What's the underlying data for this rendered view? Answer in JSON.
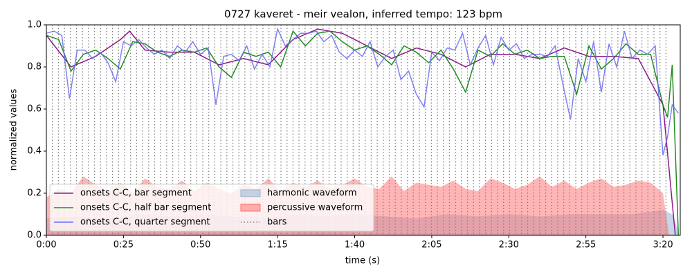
{
  "chart_data": {
    "type": "line",
    "title": "0727 kaveret - meir vealon, inferred tempo: 123 bpm",
    "xlabel": "time (s)",
    "ylabel": "normalized values",
    "xlim": [
      0,
      205.6
    ],
    "ylim": [
      0,
      1
    ],
    "xticks": [
      {
        "value": 0,
        "label": "0:00"
      },
      {
        "value": 25,
        "label": "0:25"
      },
      {
        "value": 50,
        "label": "0:50"
      },
      {
        "value": 75,
        "label": "1:15"
      },
      {
        "value": 100,
        "label": "1:40"
      },
      {
        "value": 125,
        "label": "2:05"
      },
      {
        "value": 150,
        "label": "2:30"
      },
      {
        "value": 175,
        "label": "2:55"
      },
      {
        "value": 200,
        "label": "3:20"
      }
    ],
    "yticks": [
      {
        "value": 0,
        "label": "0.0"
      },
      {
        "value": 0.2,
        "label": "0.2"
      },
      {
        "value": 0.4,
        "label": "0.4"
      },
      {
        "value": 0.6,
        "label": "0.6"
      },
      {
        "value": 0.8,
        "label": "0.8"
      },
      {
        "value": 1,
        "label": "1.0"
      }
    ],
    "legend": "lower left",
    "series": [
      {
        "name": "onsets C-C, bar segment",
        "kind": "line",
        "color": "#8b1a8b",
        "x": [
          0,
          8,
          16,
          24,
          27,
          32,
          40,
          48,
          56,
          64,
          72,
          80,
          88,
          96,
          104,
          112,
          120,
          128,
          136,
          144,
          152,
          160,
          168,
          176,
          184,
          192,
          200,
          204
        ],
        "values": [
          0.95,
          0.8,
          0.85,
          0.93,
          0.97,
          0.88,
          0.87,
          0.87,
          0.81,
          0.84,
          0.81,
          0.93,
          0.98,
          0.96,
          0.9,
          0.84,
          0.89,
          0.86,
          0.8,
          0.86,
          0.86,
          0.84,
          0.89,
          0.85,
          0.85,
          0.84,
          0.62,
          0.0
        ]
      },
      {
        "name": "onsets C-C, half bar segment",
        "kind": "line",
        "color": "#228b22",
        "x": [
          0,
          4,
          8,
          12,
          16,
          20,
          24,
          28,
          32,
          36,
          40,
          44,
          48,
          52,
          56,
          60,
          64,
          68,
          72,
          76,
          80,
          84,
          88,
          92,
          96,
          100,
          104,
          108,
          112,
          116,
          120,
          124,
          128,
          132,
          136,
          140,
          144,
          148,
          152,
          156,
          160,
          164,
          168,
          172,
          176,
          180,
          184,
          188,
          192,
          196,
          200,
          201.5,
          203,
          205
        ],
        "values": [
          0.95,
          0.93,
          0.78,
          0.86,
          0.88,
          0.84,
          0.79,
          0.92,
          0.91,
          0.87,
          0.85,
          0.88,
          0.87,
          0.89,
          0.8,
          0.75,
          0.87,
          0.85,
          0.87,
          0.8,
          0.97,
          0.9,
          0.96,
          0.97,
          0.92,
          0.88,
          0.9,
          0.86,
          0.81,
          0.9,
          0.87,
          0.82,
          0.88,
          0.79,
          0.68,
          0.88,
          0.85,
          0.91,
          0.86,
          0.88,
          0.84,
          0.85,
          0.85,
          0.67,
          0.9,
          0.79,
          0.84,
          0.91,
          0.86,
          0.86,
          0.62,
          0.56,
          0.81,
          0.0
        ]
      },
      {
        "name": "onsets C-C, quarter segment",
        "kind": "line",
        "color": "#6b6bf0",
        "x": [
          0,
          2.5,
          5,
          7.5,
          10,
          12.5,
          15,
          17.5,
          20,
          22.5,
          25,
          27.5,
          30,
          32.5,
          35,
          37.5,
          40,
          42.5,
          45,
          47.5,
          50,
          52.5,
          55,
          57.5,
          60,
          62.5,
          65,
          67.5,
          70,
          72.5,
          75,
          77.5,
          80,
          82.5,
          85,
          87.5,
          90,
          92.5,
          95,
          97.5,
          100,
          102.5,
          105,
          107.5,
          110,
          112.5,
          115,
          117.5,
          120,
          122.5,
          125,
          127.5,
          130,
          132.5,
          135,
          137.5,
          140,
          142.5,
          145,
          147.5,
          150,
          152.5,
          155,
          157.5,
          160,
          162.5,
          165,
          167.5,
          170,
          172.5,
          175,
          177.5,
          180,
          182.5,
          185,
          187.5,
          190,
          192.5,
          195,
          197.5,
          200,
          201.5,
          203,
          205
        ],
        "values": [
          0.96,
          0.97,
          0.95,
          0.65,
          0.88,
          0.88,
          0.84,
          0.87,
          0.82,
          0.73,
          0.92,
          0.9,
          0.93,
          0.89,
          0.86,
          0.88,
          0.84,
          0.9,
          0.87,
          0.92,
          0.86,
          0.89,
          0.62,
          0.85,
          0.86,
          0.83,
          0.9,
          0.79,
          0.86,
          0.8,
          0.98,
          0.9,
          0.93,
          0.96,
          0.96,
          0.97,
          0.92,
          0.95,
          0.87,
          0.84,
          0.88,
          0.85,
          0.92,
          0.8,
          0.85,
          0.88,
          0.74,
          0.78,
          0.67,
          0.61,
          0.87,
          0.83,
          0.89,
          0.88,
          0.96,
          0.81,
          0.89,
          0.95,
          0.81,
          0.94,
          0.88,
          0.91,
          0.84,
          0.86,
          0.86,
          0.85,
          0.9,
          0.72,
          0.55,
          0.84,
          0.73,
          0.92,
          0.68,
          0.91,
          0.8,
          0.97,
          0.84,
          0.88,
          0.86,
          0.9,
          0.38,
          0.47,
          0.62,
          0.58
        ]
      },
      {
        "name": "harmonic waveform",
        "kind": "area",
        "color": "#8fb0d0",
        "x": [
          0,
          10,
          20,
          30,
          40,
          50,
          60,
          70,
          80,
          90,
          100,
          110,
          120,
          130,
          140,
          150,
          160,
          170,
          180,
          190,
          200,
          203,
          205
        ],
        "values": [
          0.08,
          0.09,
          0.08,
          0.1,
          0.09,
          0.1,
          0.09,
          0.08,
          0.1,
          0.09,
          0.1,
          0.09,
          0.08,
          0.1,
          0.09,
          0.1,
          0.09,
          0.1,
          0.1,
          0.1,
          0.12,
          0.1,
          0.02
        ]
      },
      {
        "name": "percussive waveform",
        "kind": "area",
        "color": "#ff6b6b",
        "x": [
          0,
          4,
          8,
          12,
          16,
          20,
          24,
          28,
          32,
          36,
          40,
          44,
          48,
          52,
          56,
          60,
          64,
          68,
          72,
          76,
          80,
          84,
          88,
          92,
          96,
          100,
          104,
          108,
          112,
          116,
          120,
          124,
          128,
          132,
          136,
          140,
          144,
          148,
          152,
          156,
          160,
          164,
          168,
          172,
          176,
          180,
          184,
          188,
          192,
          196,
          200,
          202
        ],
        "values": [
          0.18,
          0.22,
          0.2,
          0.28,
          0.24,
          0.21,
          0.25,
          0.2,
          0.27,
          0.23,
          0.22,
          0.26,
          0.21,
          0.25,
          0.22,
          0.2,
          0.24,
          0.22,
          0.27,
          0.21,
          0.25,
          0.23,
          0.26,
          0.22,
          0.24,
          0.27,
          0.23,
          0.22,
          0.28,
          0.21,
          0.25,
          0.24,
          0.23,
          0.26,
          0.22,
          0.21,
          0.27,
          0.25,
          0.22,
          0.24,
          0.28,
          0.23,
          0.26,
          0.22,
          0.25,
          0.27,
          0.23,
          0.24,
          0.26,
          0.25,
          0.2,
          0.0
        ]
      },
      {
        "name": "bars",
        "kind": "vlines",
        "color": "#808080",
        "x": [
          0,
          1.95,
          3.9,
          5.85,
          7.8,
          9.76,
          11.71,
          13.66,
          15.61,
          17.56,
          19.51,
          21.46,
          23.41,
          25.37,
          27.32,
          29.27,
          31.22,
          33.17,
          35.12,
          37.07,
          39.02,
          40.98,
          42.93,
          44.88,
          46.83,
          48.78,
          50.73,
          52.68,
          54.63,
          56.59,
          58.54,
          60.49,
          62.44,
          64.39,
          66.34,
          68.29,
          70.24,
          72.2,
          74.15,
          76.1,
          78.05,
          80,
          81.95,
          83.9,
          85.85,
          87.8,
          89.76,
          91.71,
          93.66,
          95.61,
          97.56,
          99.51,
          101.46,
          103.41,
          105.37,
          107.32,
          109.27,
          111.22,
          113.17,
          115.12,
          117.07,
          119.02,
          120.98,
          122.93,
          124.88,
          126.83,
          128.78,
          130.73,
          132.68,
          134.63,
          136.59,
          138.54,
          140.49,
          142.44,
          144.39,
          146.34,
          148.29,
          150.24,
          152.2,
          154.15,
          156.1,
          158.05,
          160,
          161.95,
          163.9,
          165.85,
          167.8,
          169.76,
          171.71,
          173.66,
          175.61,
          177.56,
          179.51,
          181.46,
          183.41,
          185.37,
          187.32,
          189.27,
          191.22,
          193.17,
          195.12,
          197.07,
          199.02,
          200.98
        ]
      }
    ]
  }
}
